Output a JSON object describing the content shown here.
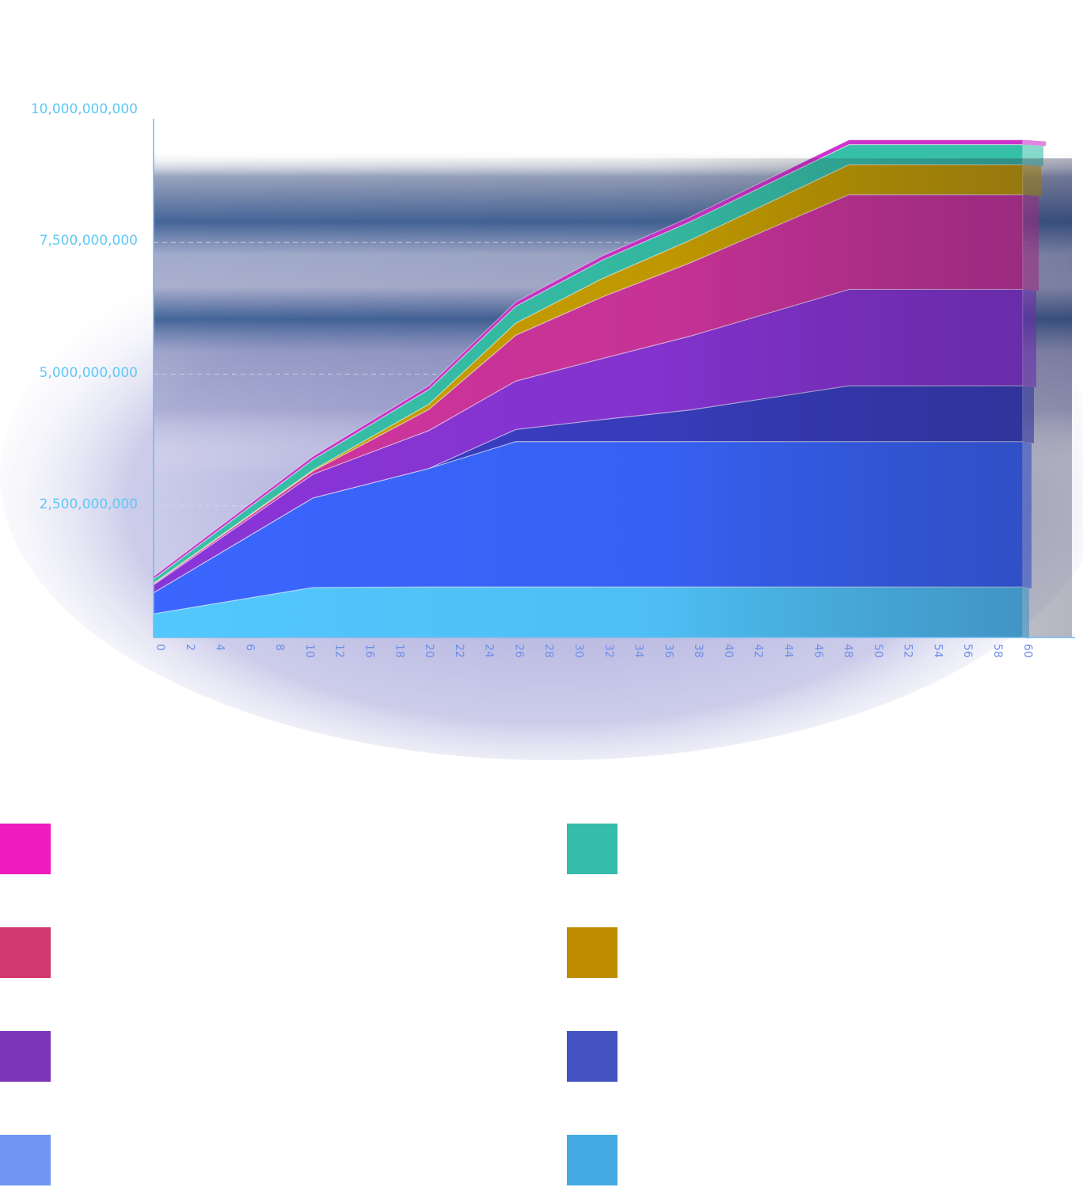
{
  "chart_data": {
    "type": "area",
    "stacked": true,
    "title": "",
    "xlabel": "",
    "ylabel": "",
    "ylim": [
      0,
      10000000000
    ],
    "y_ticks": [
      "2,500,000,000",
      "5,000,000,000",
      "7,500,000,000",
      "10,000,000,000"
    ],
    "y_tick_values": [
      2500000000,
      5000000000,
      7500000000,
      10000000000
    ],
    "x_ticks": [
      "0",
      "2",
      "4",
      "6",
      "8",
      "10",
      "12",
      "16",
      "18",
      "20",
      "22",
      "24",
      "26",
      "28",
      "30",
      "32",
      "34",
      "36",
      "38",
      "40",
      "42",
      "44",
      "46",
      "48",
      "50",
      "52",
      "54",
      "56",
      "58",
      "60"
    ],
    "grid": true,
    "legend_position": "bottom",
    "x": [
      0,
      11,
      19,
      25,
      31,
      37,
      48,
      60
    ],
    "series": [
      {
        "color": "#52c8ff",
        "values": [
          450000000,
          950000000,
          960000000,
          960000000,
          960000000,
          960000000,
          960000000,
          960000000
        ]
      },
      {
        "color": "#3a66ff",
        "values": [
          400000000,
          1700000000,
          2250000000,
          2760000000,
          2760000000,
          2760000000,
          2760000000,
          2760000000
        ]
      },
      {
        "color": "#3a3fc4",
        "values": [
          0,
          0,
          0,
          230000000,
          420000000,
          600000000,
          1060000000,
          1060000000
        ]
      },
      {
        "color": "#8a35d8",
        "values": [
          150000000,
          450000000,
          720000000,
          920000000,
          1160000000,
          1400000000,
          1830000000,
          1830000000
        ]
      },
      {
        "color": "#d0359e",
        "values": [
          20000000,
          60000000,
          400000000,
          870000000,
          1170000000,
          1390000000,
          1800000000,
          1800000000
        ]
      },
      {
        "color": "#c9a000",
        "values": [
          10000000,
          20000000,
          100000000,
          230000000,
          350000000,
          430000000,
          570000000,
          570000000
        ]
      },
      {
        "color": "#37c0a8",
        "values": [
          80000000,
          200000000,
          280000000,
          320000000,
          350000000,
          350000000,
          380000000,
          380000000
        ]
      },
      {
        "color": "#cc33cc",
        "values": [
          50000000,
          60000000,
          70000000,
          80000000,
          80000000,
          90000000,
          90000000,
          90000000
        ]
      }
    ],
    "legend_colors": [
      "#ee1cbe",
      "#36bcaa",
      "#d1386e",
      "#bf8c00",
      "#7a35b8",
      "#4452bf",
      "#6e96f2",
      "#44aae2"
    ]
  }
}
